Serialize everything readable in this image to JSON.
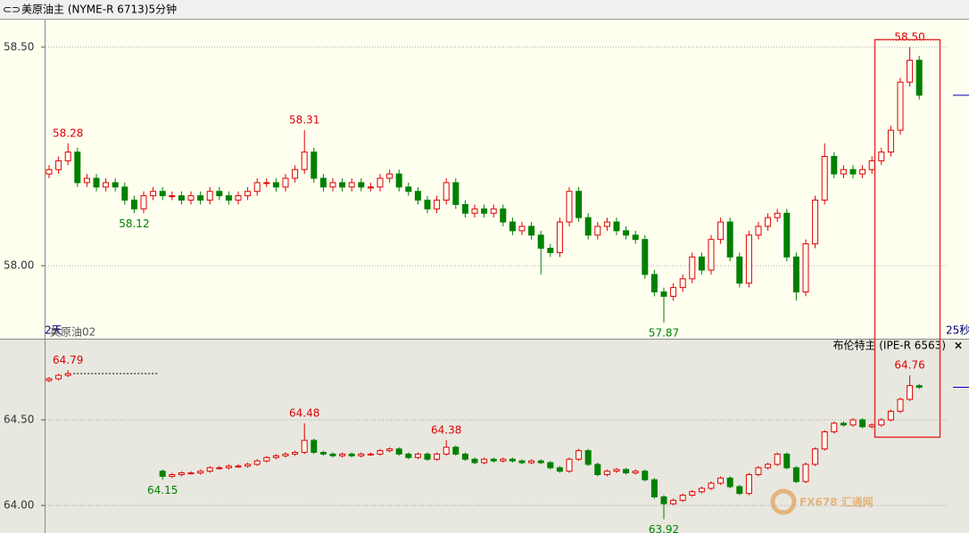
{
  "window": {
    "icon": "⊂⊃",
    "close": "×",
    "watermark": "FX678 汇通网"
  },
  "chart_data": [
    {
      "type": "candlestick",
      "title": "美原油主 (NYME-R 6713)5分钟",
      "period_label": "2天",
      "series_label": "美原油02",
      "countdown": "25秒",
      "up_color": "#e00000",
      "down_color": "#008000",
      "grid": true,
      "ylim": [
        57.833,
        58.563
      ],
      "yticks": [
        {
          "value": 58.0,
          "label": "58.00"
        },
        {
          "value": 58.5,
          "label": "58.50"
        }
      ],
      "open": [
        58.21,
        58.22,
        58.24,
        58.26,
        58.19,
        58.2,
        58.18,
        58.19,
        58.18,
        58.15,
        58.13,
        58.16,
        58.17,
        58.16,
        58.16,
        58.15,
        58.16,
        58.15,
        58.17,
        58.16,
        58.15,
        58.16,
        58.17,
        58.19,
        58.19,
        58.18,
        58.2,
        58.22,
        58.26,
        58.2,
        58.18,
        58.19,
        58.18,
        58.19,
        58.18,
        58.18,
        58.2,
        58.21,
        58.18,
        58.17,
        58.15,
        58.13,
        58.15,
        58.19,
        58.14,
        58.12,
        58.13,
        58.12,
        58.13,
        58.1,
        58.08,
        58.09,
        58.07,
        58.04,
        58.03,
        58.1,
        58.17,
        58.11,
        58.07,
        58.09,
        58.1,
        58.08,
        58.07,
        58.06,
        57.98,
        57.94,
        57.93,
        57.95,
        57.97,
        58.02,
        57.99,
        58.06,
        58.1,
        58.02,
        57.96,
        58.07,
        58.09,
        58.11,
        58.12,
        58.02,
        57.94,
        58.05,
        58.15,
        58.25,
        58.21,
        58.22,
        58.21,
        58.22,
        58.24,
        58.26,
        58.31,
        58.42,
        58.47
      ],
      "high": [
        58.23,
        58.25,
        58.28,
        58.27,
        58.21,
        58.21,
        58.2,
        58.2,
        58.19,
        58.16,
        58.17,
        58.18,
        58.18,
        58.17,
        58.17,
        58.17,
        58.17,
        58.18,
        58.18,
        58.17,
        58.17,
        58.18,
        58.2,
        58.2,
        58.2,
        58.21,
        58.23,
        58.31,
        58.27,
        58.21,
        58.2,
        58.2,
        58.2,
        58.2,
        58.19,
        58.21,
        58.22,
        58.22,
        58.19,
        58.18,
        58.16,
        58.16,
        58.2,
        58.2,
        58.15,
        58.14,
        58.14,
        58.14,
        58.14,
        58.11,
        58.1,
        58.1,
        58.08,
        58.05,
        58.11,
        58.18,
        58.18,
        58.12,
        58.1,
        58.11,
        58.11,
        58.09,
        58.08,
        58.07,
        57.99,
        57.95,
        57.96,
        57.98,
        58.03,
        58.03,
        58.07,
        58.11,
        58.11,
        58.03,
        58.08,
        58.1,
        58.12,
        58.13,
        58.13,
        58.03,
        58.06,
        58.16,
        58.28,
        58.26,
        58.23,
        58.23,
        58.23,
        58.25,
        58.27,
        58.32,
        58.43,
        58.5,
        58.48
      ],
      "low": [
        58.2,
        58.21,
        58.23,
        58.18,
        58.18,
        58.17,
        58.17,
        58.17,
        58.14,
        58.12,
        58.12,
        58.15,
        58.15,
        58.15,
        58.14,
        58.14,
        58.14,
        58.14,
        58.15,
        58.14,
        58.14,
        58.15,
        58.16,
        58.18,
        58.17,
        58.17,
        58.19,
        58.21,
        58.19,
        58.17,
        58.17,
        58.17,
        58.17,
        58.17,
        58.17,
        58.17,
        58.19,
        58.17,
        58.16,
        58.14,
        58.12,
        58.12,
        58.14,
        58.13,
        58.11,
        58.11,
        58.11,
        58.11,
        58.09,
        58.07,
        58.07,
        58.06,
        57.98,
        58.02,
        58.02,
        58.09,
        58.1,
        58.06,
        58.06,
        58.08,
        58.07,
        58.06,
        58.05,
        57.97,
        57.93,
        57.87,
        57.92,
        57.94,
        57.96,
        57.98,
        57.98,
        58.05,
        58.01,
        57.95,
        57.95,
        58.06,
        58.08,
        58.1,
        58.01,
        57.92,
        57.93,
        58.04,
        58.14,
        58.2,
        58.2,
        58.2,
        58.2,
        58.21,
        58.23,
        58.25,
        58.3,
        58.41,
        58.38
      ],
      "close": [
        58.22,
        58.24,
        58.26,
        58.19,
        58.2,
        58.18,
        58.19,
        58.18,
        58.15,
        58.13,
        58.16,
        58.17,
        58.16,
        58.16,
        58.15,
        58.16,
        58.15,
        58.17,
        58.16,
        58.15,
        58.16,
        58.17,
        58.19,
        58.19,
        58.18,
        58.2,
        58.22,
        58.26,
        58.2,
        58.18,
        58.19,
        58.18,
        58.19,
        58.18,
        58.18,
        58.2,
        58.21,
        58.18,
        58.17,
        58.15,
        58.13,
        58.15,
        58.19,
        58.14,
        58.12,
        58.13,
        58.12,
        58.13,
        58.1,
        58.08,
        58.09,
        58.07,
        58.04,
        58.03,
        58.1,
        58.17,
        58.11,
        58.07,
        58.09,
        58.1,
        58.08,
        58.07,
        58.06,
        57.98,
        57.94,
        57.93,
        57.95,
        57.97,
        58.02,
        57.99,
        58.06,
        58.1,
        58.02,
        57.96,
        58.07,
        58.09,
        58.11,
        58.12,
        58.02,
        57.94,
        58.05,
        58.15,
        58.25,
        58.21,
        58.22,
        58.21,
        58.22,
        58.24,
        58.26,
        58.31,
        58.42,
        58.47,
        58.39
      ],
      "annotations": [
        {
          "text": "58.28",
          "value": 58.28,
          "at": "high"
        },
        {
          "text": "58.12",
          "value": 58.12,
          "at": "low"
        },
        {
          "text": "58.31",
          "value": 58.31,
          "at": "high"
        },
        {
          "text": "57.87",
          "value": 57.87,
          "at": "low"
        },
        {
          "text": "58.50",
          "value": 58.5,
          "at": "high"
        }
      ]
    },
    {
      "type": "candlestick",
      "title": "布伦特主 (IPE-R 6563)",
      "up_color": "#e00000",
      "down_color": "#008000",
      "grid": true,
      "ylim": [
        63.839,
        64.974
      ],
      "yticks": [
        {
          "value": 64.0,
          "label": "64.00"
        },
        {
          "value": 64.5,
          "label": "64.50"
        }
      ],
      "open": [
        64.73,
        64.74,
        64.76,
        null,
        null,
        null,
        null,
        null,
        null,
        null,
        null,
        null,
        64.2,
        64.17,
        64.18,
        64.19,
        64.19,
        64.2,
        64.22,
        64.22,
        64.23,
        64.23,
        64.24,
        64.26,
        64.28,
        64.29,
        64.3,
        64.31,
        64.38,
        64.31,
        64.3,
        64.29,
        64.3,
        64.29,
        64.3,
        64.3,
        64.32,
        64.33,
        64.3,
        64.28,
        64.3,
        64.27,
        64.3,
        64.34,
        64.3,
        64.27,
        64.25,
        64.27,
        64.26,
        64.27,
        64.26,
        64.25,
        64.26,
        64.25,
        64.22,
        64.2,
        64.27,
        64.32,
        64.24,
        64.18,
        64.2,
        64.21,
        64.19,
        64.2,
        64.15,
        64.05,
        64.01,
        64.03,
        64.06,
        64.08,
        64.1,
        64.13,
        64.16,
        64.11,
        64.07,
        64.18,
        64.22,
        64.24,
        64.3,
        64.22,
        64.14,
        64.24,
        64.33,
        64.43,
        64.48,
        64.47,
        64.5,
        64.46,
        64.47,
        64.5,
        64.55,
        64.62,
        64.7
      ],
      "high": [
        64.75,
        64.77,
        64.79,
        null,
        null,
        null,
        null,
        null,
        null,
        null,
        null,
        null,
        64.21,
        64.19,
        64.2,
        64.2,
        64.21,
        64.23,
        64.23,
        64.24,
        64.24,
        64.25,
        64.27,
        64.29,
        64.3,
        64.31,
        64.32,
        64.48,
        64.39,
        64.32,
        64.31,
        64.31,
        64.31,
        64.31,
        64.31,
        64.33,
        64.34,
        64.34,
        64.31,
        64.31,
        64.31,
        64.31,
        64.38,
        64.35,
        64.31,
        64.28,
        64.28,
        64.28,
        64.28,
        64.28,
        64.27,
        64.27,
        64.27,
        64.26,
        64.23,
        64.28,
        64.33,
        64.33,
        64.25,
        64.21,
        64.22,
        64.22,
        64.21,
        64.21,
        64.16,
        64.06,
        64.04,
        64.07,
        64.09,
        64.11,
        64.14,
        64.17,
        64.17,
        64.12,
        64.19,
        64.23,
        64.25,
        64.31,
        64.31,
        64.23,
        64.25,
        64.34,
        64.44,
        64.49,
        64.49,
        64.51,
        64.51,
        64.48,
        64.51,
        64.56,
        64.63,
        64.76,
        64.71
      ],
      "low": [
        64.72,
        64.73,
        64.75,
        null,
        null,
        null,
        null,
        null,
        null,
        null,
        null,
        null,
        64.15,
        64.16,
        64.17,
        64.18,
        64.18,
        64.19,
        64.21,
        64.21,
        64.22,
        64.22,
        64.23,
        64.25,
        64.27,
        64.28,
        64.29,
        64.3,
        64.3,
        64.29,
        64.28,
        64.28,
        64.28,
        64.28,
        64.29,
        64.29,
        64.31,
        64.29,
        64.27,
        64.27,
        64.26,
        64.26,
        64.29,
        64.29,
        64.26,
        64.24,
        64.24,
        64.25,
        64.25,
        64.25,
        64.24,
        64.24,
        64.24,
        64.21,
        64.19,
        64.19,
        64.26,
        64.23,
        64.17,
        64.17,
        64.19,
        64.18,
        64.18,
        64.14,
        64.04,
        63.92,
        64.0,
        64.02,
        64.05,
        64.07,
        64.09,
        64.12,
        64.1,
        64.06,
        64.06,
        64.17,
        64.21,
        64.23,
        64.21,
        64.13,
        64.13,
        64.23,
        64.32,
        64.42,
        64.46,
        64.46,
        64.45,
        64.45,
        64.46,
        64.49,
        64.54,
        64.61,
        64.68
      ],
      "close": [
        64.74,
        64.76,
        64.77,
        null,
        null,
        null,
        null,
        null,
        null,
        null,
        null,
        null,
        64.17,
        64.18,
        64.19,
        64.19,
        64.2,
        64.22,
        64.22,
        64.23,
        64.23,
        64.24,
        64.26,
        64.28,
        64.29,
        64.3,
        64.31,
        64.38,
        64.31,
        64.3,
        64.29,
        64.3,
        64.29,
        64.3,
        64.3,
        64.32,
        64.33,
        64.3,
        64.28,
        64.3,
        64.27,
        64.3,
        64.34,
        64.3,
        64.27,
        64.25,
        64.27,
        64.26,
        64.27,
        64.26,
        64.25,
        64.26,
        64.25,
        64.22,
        64.2,
        64.27,
        64.32,
        64.24,
        64.18,
        64.2,
        64.21,
        64.19,
        64.2,
        64.15,
        64.05,
        64.01,
        64.03,
        64.06,
        64.08,
        64.1,
        64.13,
        64.16,
        64.11,
        64.07,
        64.18,
        64.22,
        64.24,
        64.3,
        64.22,
        64.14,
        64.24,
        64.33,
        64.43,
        64.48,
        64.47,
        64.5,
        64.46,
        64.47,
        64.5,
        64.55,
        64.62,
        64.7,
        64.69
      ],
      "annotations": [
        {
          "text": "64.79",
          "value": 64.79,
          "at": "high"
        },
        {
          "text": "64.48",
          "value": 64.48,
          "at": "high"
        },
        {
          "text": "64.38",
          "value": 64.38,
          "at": "high"
        },
        {
          "text": "64.15",
          "value": 64.15,
          "at": "low"
        },
        {
          "text": "63.92",
          "value": 63.92,
          "at": "low"
        },
        {
          "text": "64.76",
          "value": 64.76,
          "at": "high"
        }
      ]
    }
  ]
}
